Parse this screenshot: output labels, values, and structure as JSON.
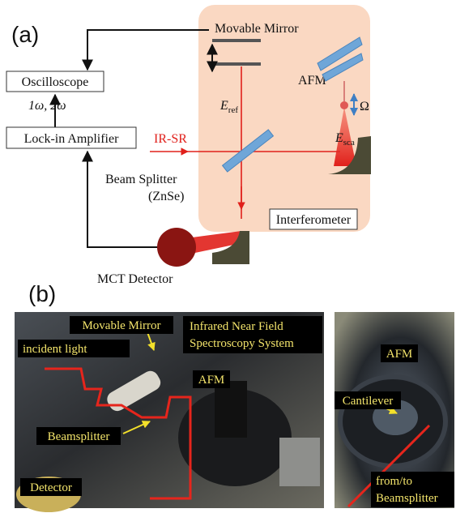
{
  "panel_a": {
    "label": "(a)",
    "movable_mirror": "Movable Mirror",
    "oscilloscope": "Oscilloscope",
    "frequencies": "1ω, 2ω",
    "lock_in": "Lock-in Amplifier",
    "source": "IR-SR",
    "reference_field": {
      "symbol": "E",
      "subscript": "ref"
    },
    "afm": "AFM",
    "modulation": "Ω",
    "scattered_field": {
      "symbol": "E",
      "subscript": "sca"
    },
    "beam_splitter": [
      "Beam Splitter",
      "(ZnSe)"
    ],
    "interferometer": "Interferometer",
    "detector": "MCT Detector"
  },
  "panel_b": {
    "label": "(b)",
    "photo_left": {
      "movable_mirror": "Movable Mirror",
      "system": [
        "Infrared Near Field",
        "Spectroscopy System"
      ],
      "incident_light": "incident light",
      "afm": "AFM",
      "beamsplitter": "Beamsplitter",
      "detector": "Detector"
    },
    "photo_right": {
      "afm": "AFM",
      "cantilever": "Cantilever",
      "path": [
        "from/to",
        "Beamsplitter"
      ]
    }
  }
}
